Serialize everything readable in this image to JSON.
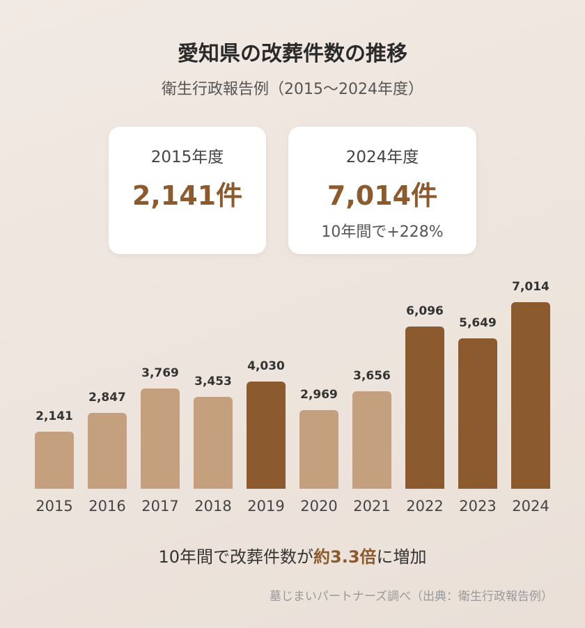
{
  "title": "愛知県の改葬件数の推移",
  "subtitle": "衛生行政報告例（2015〜2024年度）",
  "cards": [
    {
      "year": "2015年度",
      "value": "2,141件",
      "change": ""
    },
    {
      "year": "2024年度",
      "value": "7,014件",
      "change": "10年間で+228%"
    }
  ],
  "chart_data": {
    "type": "bar",
    "categories": [
      "2015",
      "2016",
      "2017",
      "2018",
      "2019",
      "2020",
      "2021",
      "2022",
      "2023",
      "2024"
    ],
    "values": [
      2141,
      2847,
      3769,
      3453,
      4030,
      2969,
      3656,
      6096,
      5649,
      7014
    ],
    "labels": [
      "2,141",
      "2,847",
      "3,769",
      "3,453",
      "4,030",
      "2,969",
      "3,656",
      "6,096",
      "5,649",
      "7,014"
    ],
    "highlighted": [
      false,
      false,
      false,
      false,
      true,
      false,
      false,
      true,
      true,
      true
    ],
    "colors": {
      "normal": "#c4a07f",
      "highlight": "#8b5a2e"
    },
    "ylim": [
      0,
      7014
    ]
  },
  "summary": {
    "pre": "10年間で改葬件数が",
    "emph": "約3.3倍",
    "post": "に増加"
  },
  "source": "墓じまいパートナーズ調べ（出典：衛生行政報告例）"
}
